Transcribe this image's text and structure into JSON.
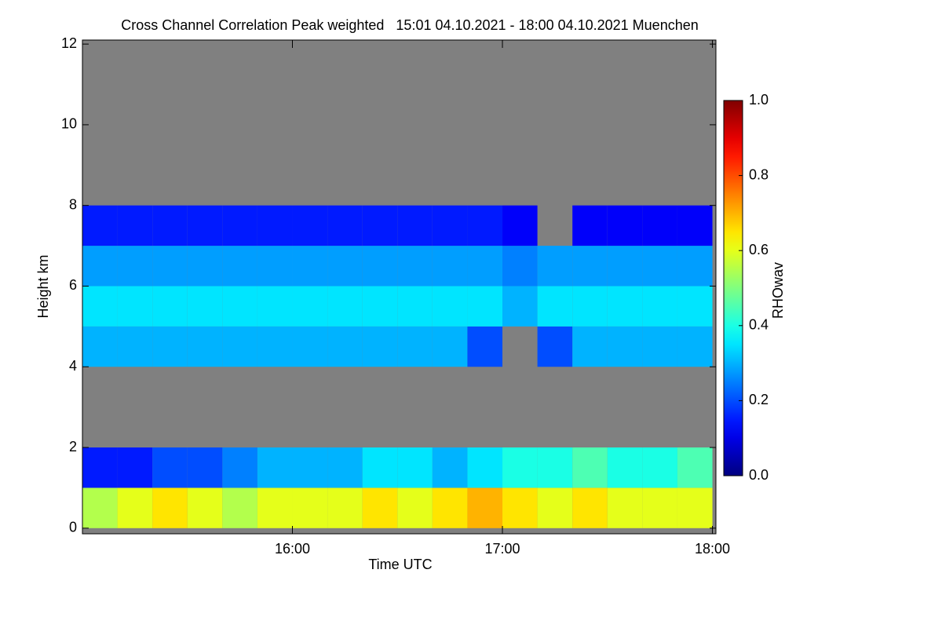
{
  "chart_data": {
    "type": "heatmap",
    "title": "Cross Channel Correlation Peak weighted   15:01 04.10.2021 - 18:00 04.10.2021 Muenchen",
    "x_label": "Time UTC",
    "y_label": "Height km",
    "colorbar_label": "RHOwav",
    "x": [
      "15:05",
      "15:15",
      "15:25",
      "15:35",
      "15:45",
      "15:55",
      "16:05",
      "16:15",
      "16:25",
      "16:35",
      "16:45",
      "16:55",
      "17:05",
      "17:15",
      "17:25",
      "17:35",
      "17:45",
      "17:55"
    ],
    "y": [
      0.5,
      1.5,
      2.5,
      3.5,
      4.5,
      5.5,
      6.5,
      7.5,
      8.5,
      9.5,
      10.5,
      11.5
    ],
    "z": [
      [
        0.55,
        0.6,
        0.65,
        0.6,
        0.55,
        0.6,
        0.6,
        0.6,
        0.65,
        0.6,
        0.65,
        0.7,
        0.65,
        0.6,
        0.65,
        0.6,
        0.6,
        0.6
      ],
      [
        0.15,
        0.15,
        0.2,
        0.2,
        0.25,
        0.3,
        0.3,
        0.3,
        0.35,
        0.35,
        0.3,
        0.35,
        0.4,
        0.4,
        0.45,
        0.4,
        0.4,
        0.45
      ],
      [
        null,
        null,
        null,
        null,
        null,
        null,
        null,
        null,
        null,
        null,
        null,
        null,
        null,
        null,
        null,
        null,
        null,
        null
      ],
      [
        null,
        null,
        null,
        null,
        null,
        null,
        null,
        null,
        null,
        null,
        null,
        null,
        null,
        null,
        null,
        null,
        null,
        null
      ],
      [
        0.3,
        0.3,
        0.3,
        0.3,
        0.3,
        0.3,
        0.3,
        0.3,
        0.3,
        0.3,
        0.3,
        0.2,
        null,
        0.2,
        0.3,
        0.3,
        0.3,
        0.3
      ],
      [
        0.35,
        0.35,
        0.35,
        0.35,
        0.35,
        0.35,
        0.35,
        0.35,
        0.35,
        0.35,
        0.35,
        0.35,
        0.3,
        0.35,
        0.35,
        0.35,
        0.35,
        0.35
      ],
      [
        0.28,
        0.28,
        0.28,
        0.28,
        0.28,
        0.28,
        0.28,
        0.28,
        0.28,
        0.28,
        0.28,
        0.28,
        0.25,
        0.28,
        0.28,
        0.28,
        0.28,
        0.28
      ],
      [
        0.15,
        0.15,
        0.15,
        0.15,
        0.15,
        0.15,
        0.15,
        0.15,
        0.15,
        0.15,
        0.15,
        0.15,
        0.12,
        null,
        0.12,
        0.12,
        0.12,
        0.12
      ],
      [
        null,
        null,
        null,
        null,
        null,
        null,
        null,
        null,
        null,
        null,
        null,
        null,
        null,
        null,
        null,
        null,
        null,
        null
      ],
      [
        null,
        null,
        null,
        null,
        null,
        null,
        null,
        null,
        null,
        null,
        null,
        null,
        null,
        null,
        null,
        null,
        null,
        null
      ],
      [
        null,
        null,
        null,
        null,
        null,
        null,
        null,
        null,
        null,
        null,
        null,
        null,
        null,
        null,
        null,
        null,
        null,
        null
      ],
      [
        null,
        null,
        null,
        null,
        null,
        null,
        null,
        null,
        null,
        null,
        null,
        null,
        null,
        null,
        null,
        null,
        null,
        null
      ]
    ],
    "xlim": [
      "15:00",
      "18:01"
    ],
    "xticks": [
      "16:00",
      "17:00",
      "18:00"
    ],
    "ylim": [
      -0.14,
      12.1
    ],
    "yticks": [
      0,
      2,
      4,
      6,
      8,
      10,
      12
    ],
    "clim": [
      0,
      1
    ],
    "cticks": [
      {
        "value": 0,
        "label": "0.0"
      },
      {
        "value": 0.2,
        "label": "0.2"
      },
      {
        "value": 0.4,
        "label": "0.4"
      },
      {
        "value": 0.6,
        "label": "0.6"
      },
      {
        "value": 0.8,
        "label": "0.8"
      },
      {
        "value": 1,
        "label": "1.0"
      }
    ],
    "colormap": "jet",
    "missing_color": "#808080"
  }
}
